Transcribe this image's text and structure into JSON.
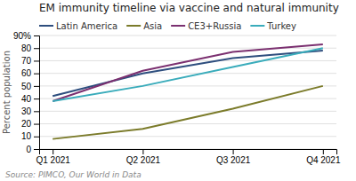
{
  "chart_data": {
    "type": "line",
    "title": "EM immunity timeline via vaccine and natural immunity",
    "source": "Source: PIMCO, Our World in Data",
    "ylabel": "Percent population",
    "categories": [
      "Q1 2021",
      "Q2 2021",
      "Q3 2021",
      "Q4 2021"
    ],
    "series": [
      {
        "name": "Latin America",
        "color": "#2e4e7e",
        "values": [
          42,
          60,
          72,
          78
        ]
      },
      {
        "name": "Asia",
        "color": "#7b7b2a",
        "values": [
          8,
          16,
          32,
          50
        ]
      },
      {
        "name": "CE3+Russia",
        "color": "#7b3070",
        "values": [
          38,
          62,
          77,
          83
        ]
      },
      {
        "name": "Turkey",
        "color": "#3aacbb",
        "values": [
          38,
          50,
          65,
          80
        ]
      }
    ],
    "ylim": [
      0,
      90
    ],
    "yticks": [
      0,
      10,
      20,
      30,
      40,
      50,
      60,
      70,
      80,
      {
        "value": 90,
        "label": "90%"
      }
    ],
    "grid": true,
    "legend": "top"
  }
}
